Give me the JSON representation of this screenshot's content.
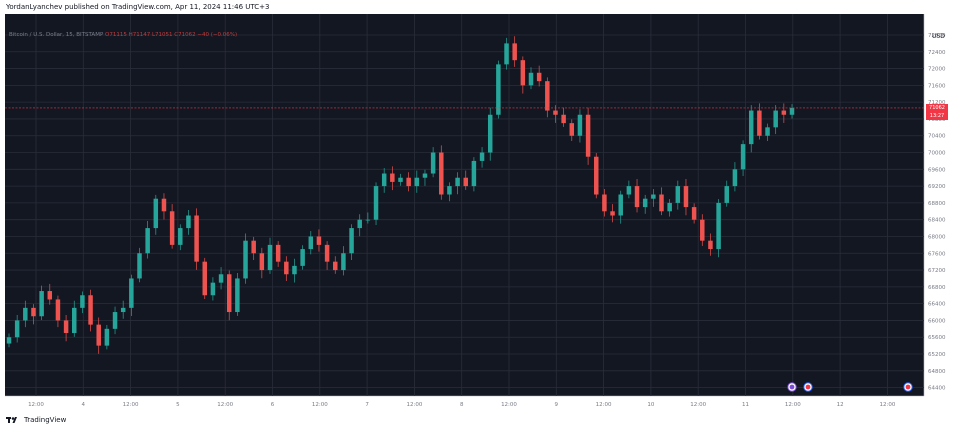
{
  "publication": {
    "text": "YordanLyanchev published on TradingView.com, Apr 11, 2024 11:46 UTC+3"
  },
  "legend": {
    "symbol": "Bitcoin / U.S. Dollar, 15, BITSTAMP",
    "ohlc": "O71115 H71147 L71051 C71062 −40 (−0.06%)"
  },
  "price_axis": {
    "currency": "USD",
    "current_price": "71062",
    "countdown": "13:27",
    "ticks": [
      "72800",
      "72400",
      "72000",
      "71600",
      "71200",
      "70800",
      "70400",
      "70000",
      "69600",
      "69200",
      "68800",
      "68400",
      "68000",
      "67600",
      "67200",
      "66800",
      "66400",
      "66000",
      "65600",
      "65200",
      "64800",
      "64400"
    ]
  },
  "time_axis": {
    "ticks": [
      "12:00",
      "4",
      "12:00",
      "5",
      "12:00",
      "6",
      "12:00",
      "7",
      "12:00",
      "8",
      "12:00",
      "9",
      "12:00",
      "10",
      "12:00",
      "11",
      "12:00",
      "12",
      "12:00"
    ]
  },
  "footer": {
    "brand": "TradingView"
  },
  "colors": {
    "background": "#131722",
    "grid": "#2a2e39",
    "up": "#26a69a",
    "down": "#ef5350",
    "price_line": "#f23645"
  },
  "chart_data": {
    "type": "candlestick",
    "title": "Bitcoin / U.S. Dollar, 15, BITSTAMP",
    "xlabel": "",
    "ylabel": "USD",
    "ylim": [
      64200,
      73300
    ],
    "last_price": 71062,
    "x_ticks": [
      "12:00",
      "4",
      "12:00",
      "5",
      "12:00",
      "6",
      "12:00",
      "7",
      "12:00",
      "8",
      "12:00",
      "9",
      "12:00",
      "10",
      "12:00",
      "11",
      "12:00",
      "12",
      "12:00"
    ],
    "series": [
      {
        "values": [
          65600,
          66000,
          66300,
          66100,
          66700,
          66500,
          66000,
          65700,
          66300,
          66600,
          65900,
          65400,
          65800,
          66200,
          66300,
          67000,
          67600,
          68200,
          68900,
          68600,
          67800,
          68200,
          68500,
          67400,
          66600,
          66900,
          67100,
          66200,
          67000,
          67900,
          67600,
          67200,
          67800,
          67400,
          67100,
          67300,
          67700,
          68000,
          67800,
          67400,
          67200,
          67600,
          68200,
          68400,
          68400,
          69200,
          69500,
          69300,
          69400,
          69200,
          69400,
          69500,
          70000,
          69000,
          69200,
          69400,
          69200,
          69800,
          70000,
          70900,
          72100,
          72600,
          72200,
          71600,
          71900,
          71700,
          71000,
          70900,
          70700,
          70400,
          70900,
          69900,
          69000,
          68600,
          68500,
          69000,
          69200,
          68700,
          68900,
          69000,
          68600,
          68800,
          69200,
          68700,
          68400,
          67900,
          67700,
          68800,
          69200,
          69600,
          70200,
          71000,
          70400,
          70600,
          71000,
          70900,
          71062
        ]
      }
    ]
  }
}
